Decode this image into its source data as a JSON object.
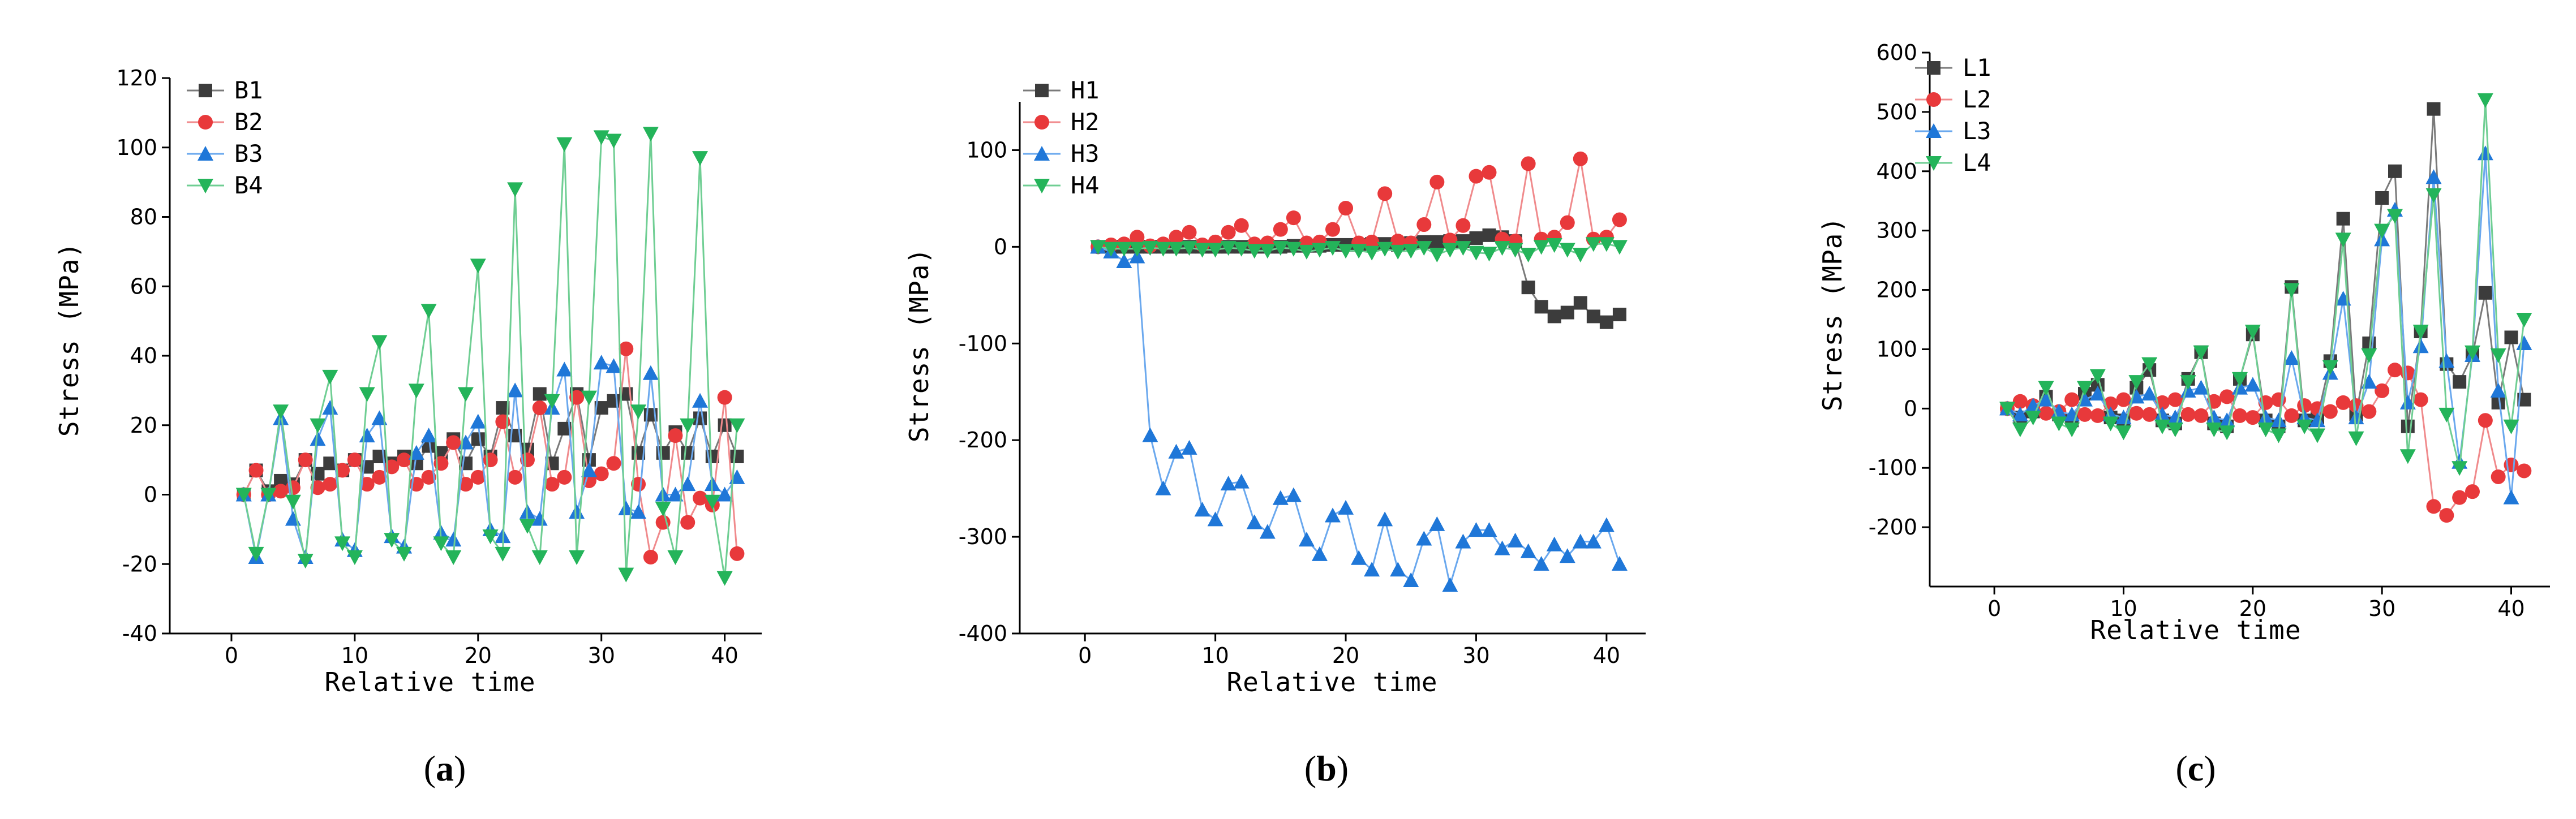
{
  "figure": {
    "marker_colors": {
      "series1": "#3c3c3c",
      "series2": "#e8393b",
      "series3": "#1f77d8",
      "series4": "#24b45a"
    },
    "line_colors": {
      "series1": "#7a7a7a",
      "series2": "#f08a8c",
      "series3": "#6aa8ee",
      "series4": "#6fce93"
    }
  },
  "chart_data": [
    {
      "type": "line",
      "panel_label": "a",
      "xlabel": "Relative time",
      "ylabel": "Stress (MPa)",
      "xlim": [
        -5,
        43
      ],
      "ylim": [
        -40,
        120
      ],
      "xticks": [
        0,
        10,
        20,
        30,
        40
      ],
      "yticks": [
        -40,
        -20,
        0,
        20,
        40,
        60,
        80,
        100,
        120
      ],
      "legend_position": "top-left",
      "x": [
        1,
        2,
        3,
        4,
        5,
        6,
        7,
        8,
        9,
        10,
        11,
        12,
        13,
        14,
        15,
        16,
        17,
        18,
        19,
        20,
        21,
        22,
        23,
        24,
        25,
        26,
        27,
        28,
        29,
        30,
        31,
        32,
        33,
        34,
        35,
        36,
        37,
        38,
        39,
        40,
        41
      ],
      "series": [
        {
          "name": "B1",
          "marker": "square",
          "values": [
            0,
            7,
            1,
            4,
            3,
            10,
            6,
            9,
            7,
            10,
            8,
            11,
            9,
            11,
            9,
            14,
            12,
            16,
            9,
            16,
            11,
            25,
            17,
            13,
            29,
            9,
            19,
            29,
            10,
            25,
            27,
            29,
            12,
            23,
            12,
            18,
            12,
            22,
            11,
            20,
            11
          ]
        },
        {
          "name": "B2",
          "marker": "circle",
          "values": [
            0,
            7,
            0,
            1,
            2,
            10,
            2,
            3,
            7,
            10,
            3,
            5,
            8,
            10,
            3,
            5,
            9,
            15,
            3,
            5,
            10,
            21,
            5,
            10,
            25,
            3,
            5,
            28,
            4,
            6,
            9,
            42,
            3,
            -18,
            -8,
            17,
            -8,
            -1,
            -3,
            28,
            -17
          ]
        },
        {
          "name": "B3",
          "marker": "triangle-up",
          "values": [
            0,
            -18,
            0,
            22,
            -7,
            -18,
            16,
            25,
            -13,
            -16,
            17,
            22,
            -12,
            -15,
            12,
            17,
            -11,
            -13,
            15,
            21,
            -10,
            -12,
            30,
            -5,
            -7,
            25,
            36,
            -5,
            7,
            38,
            37,
            -4,
            -5,
            35,
            0,
            0,
            3,
            27,
            3,
            0,
            5
          ]
        },
        {
          "name": "B4",
          "marker": "triangle-down",
          "values": [
            0,
            -17,
            0,
            24,
            -2,
            -19,
            20,
            34,
            -14,
            -18,
            29,
            44,
            -13,
            -17,
            30,
            53,
            -14,
            -18,
            29,
            66,
            -12,
            -17,
            88,
            -9,
            -18,
            27,
            101,
            -18,
            28,
            103,
            102,
            -23,
            24,
            104,
            -4,
            -18,
            20,
            97,
            -2,
            -24,
            20
          ]
        }
      ]
    },
    {
      "type": "line",
      "panel_label": "b",
      "xlabel": "Relative time",
      "ylabel": "Stress (MPa)",
      "xlim": [
        -5,
        43
      ],
      "ylim": [
        -400,
        150
      ],
      "xticks": [
        0,
        10,
        20,
        30,
        40
      ],
      "yticks": [
        -400,
        -300,
        -200,
        -100,
        0,
        100
      ],
      "legend_position": "top-left",
      "x": [
        1,
        2,
        3,
        4,
        5,
        6,
        7,
        8,
        9,
        10,
        11,
        12,
        13,
        14,
        15,
        16,
        17,
        18,
        19,
        20,
        21,
        22,
        23,
        24,
        25,
        26,
        27,
        28,
        29,
        30,
        31,
        32,
        33,
        34,
        35,
        36,
        37,
        38,
        39,
        40,
        41
      ],
      "series": [
        {
          "name": "H1",
          "marker": "square",
          "values": [
            0,
            0,
            0,
            0,
            0,
            0,
            0,
            0,
            0,
            0,
            0,
            0,
            0,
            0,
            0,
            1,
            1,
            1,
            2,
            2,
            2,
            3,
            3,
            2,
            4,
            5,
            5,
            6,
            6,
            9,
            12,
            10,
            6,
            -42,
            -62,
            -72,
            -68,
            -58,
            -72,
            -78,
            -70
          ]
        },
        {
          "name": "H2",
          "marker": "circle",
          "values": [
            0,
            2,
            3,
            10,
            1,
            3,
            10,
            15,
            2,
            5,
            15,
            22,
            3,
            4,
            18,
            30,
            4,
            5,
            18,
            40,
            4,
            5,
            55,
            6,
            4,
            23,
            67,
            7,
            22,
            73,
            77,
            8,
            6,
            86,
            8,
            10,
            25,
            91,
            8,
            10,
            28
          ]
        },
        {
          "name": "H3",
          "marker": "triangle-up",
          "values": [
            0,
            -5,
            -15,
            -10,
            -195,
            -250,
            -212,
            -208,
            -272,
            -282,
            -245,
            -243,
            -285,
            -295,
            -260,
            -257,
            -303,
            -318,
            -278,
            -270,
            -322,
            -334,
            -282,
            -334,
            -345,
            -302,
            -287,
            -350,
            -305,
            -293,
            -293,
            -312,
            -304,
            -315,
            -328,
            -308,
            -320,
            -305,
            -305,
            -288,
            -328
          ]
        },
        {
          "name": "H4",
          "marker": "triangle-down",
          "values": [
            0,
            -2,
            -2,
            -2,
            -1,
            -2,
            -2,
            -1,
            -3,
            -3,
            -1,
            -2,
            -4,
            -4,
            -1,
            -2,
            -5,
            -3,
            -1,
            -4,
            -4,
            -6,
            -2,
            -5,
            -4,
            -1,
            -8,
            -3,
            -1,
            -6,
            -7,
            -1,
            -3,
            -8,
            0,
            2,
            -3,
            -8,
            3,
            3,
            0
          ]
        }
      ]
    },
    {
      "type": "line",
      "panel_label": "c",
      "xlabel": "Relative time",
      "ylabel": "Stress (MPa)",
      "xlim": [
        -5,
        43
      ],
      "ylim": [
        -300,
        600
      ],
      "xticks": [
        0,
        10,
        20,
        30,
        40
      ],
      "yticks": [
        -200,
        -100,
        0,
        100,
        200,
        300,
        400,
        500,
        600
      ],
      "legend_position": "top-left",
      "x": [
        1,
        2,
        3,
        4,
        5,
        6,
        7,
        8,
        9,
        10,
        11,
        12,
        13,
        14,
        15,
        16,
        17,
        18,
        19,
        20,
        21,
        22,
        23,
        24,
        25,
        26,
        27,
        28,
        29,
        30,
        31,
        32,
        33,
        34,
        35,
        36,
        37,
        38,
        39,
        40,
        41
      ],
      "series": [
        {
          "name": "L1",
          "marker": "square",
          "values": [
            0,
            -15,
            -5,
            20,
            -10,
            -20,
            25,
            40,
            -15,
            -20,
            35,
            65,
            -20,
            -25,
            50,
            95,
            -25,
            -30,
            50,
            125,
            -20,
            -30,
            205,
            -20,
            -15,
            80,
            320,
            -10,
            110,
            355,
            400,
            -30,
            130,
            505,
            75,
            45,
            90,
            195,
            10,
            120,
            15
          ]
        },
        {
          "name": "L2",
          "marker": "circle",
          "values": [
            0,
            12,
            5,
            -8,
            -5,
            15,
            -10,
            -12,
            8,
            15,
            -8,
            -10,
            10,
            15,
            -10,
            -12,
            12,
            20,
            -12,
            -15,
            10,
            15,
            -12,
            5,
            0,
            -5,
            10,
            5,
            -5,
            30,
            65,
            60,
            15,
            -165,
            -180,
            -150,
            -140,
            -20,
            -115,
            -95,
            -105
          ]
        },
        {
          "name": "L3",
          "marker": "triangle-up",
          "values": [
            0,
            -10,
            5,
            15,
            -5,
            -10,
            15,
            25,
            -10,
            -15,
            20,
            25,
            -10,
            -15,
            30,
            35,
            -15,
            -20,
            35,
            40,
            -15,
            -20,
            85,
            -15,
            -20,
            60,
            185,
            -15,
            45,
            285,
            335,
            10,
            105,
            390,
            80,
            -90,
            90,
            430,
            30,
            -150,
            110
          ]
        },
        {
          "name": "L4",
          "marker": "triangle-down",
          "values": [
            0,
            -35,
            -15,
            35,
            -25,
            -35,
            35,
            55,
            -25,
            -40,
            45,
            75,
            -30,
            -35,
            45,
            95,
            -35,
            -40,
            50,
            130,
            -35,
            -45,
            200,
            -30,
            -45,
            70,
            285,
            -50,
            90,
            300,
            325,
            -80,
            130,
            360,
            -10,
            -100,
            95,
            520,
            90,
            -30,
            150
          ]
        }
      ]
    }
  ]
}
